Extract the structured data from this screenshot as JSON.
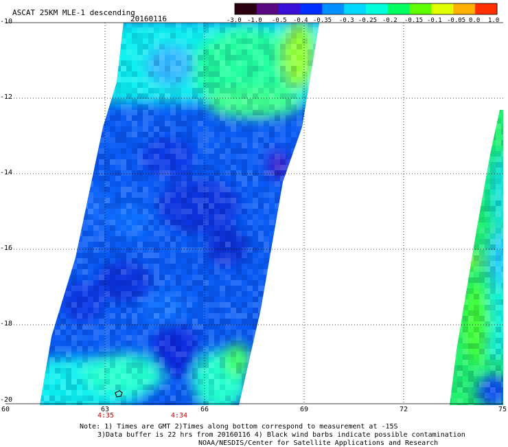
{
  "header": {
    "title": "ASCAT 25KM MLE-1 descending",
    "date": "20160116"
  },
  "colorbar": {
    "labels": [
      "-3.0",
      "-1.0",
      "-0.5",
      "-0.4",
      "-0.35",
      "-0.3",
      "-0.25",
      "-0.2",
      "-0.15",
      "-0.1",
      "-0.05",
      "0.0",
      "1.0"
    ],
    "colors": [
      "#2a0010",
      "#5a0a80",
      "#3a10d8",
      "#0030ff",
      "#0090ff",
      "#00d8ff",
      "#00ffd8",
      "#00ff60",
      "#60ff00",
      "#e0ff00",
      "#ffb000",
      "#ff3000"
    ]
  },
  "map": {
    "lon_ticks": [
      "60",
      "63",
      "66",
      "69",
      "72",
      "75"
    ],
    "lat_ticks": [
      "-10",
      "-12",
      "-14",
      "-16",
      "-18",
      "-20"
    ],
    "times": [
      {
        "label": "4:35",
        "lon": 63
      },
      {
        "label": "4:34",
        "lon": 65.3
      }
    ]
  },
  "notes": {
    "line1": "Note: 1) Times are GMT 2)Times along bottom correspond to measurement at -15S",
    "line2": "3)Data buffer is 22 hrs from 20160116 4) Black wind barbs indicate possible contamination",
    "line3": "NOAA/NESDIS/Center for Satellite Applications and Research"
  }
}
